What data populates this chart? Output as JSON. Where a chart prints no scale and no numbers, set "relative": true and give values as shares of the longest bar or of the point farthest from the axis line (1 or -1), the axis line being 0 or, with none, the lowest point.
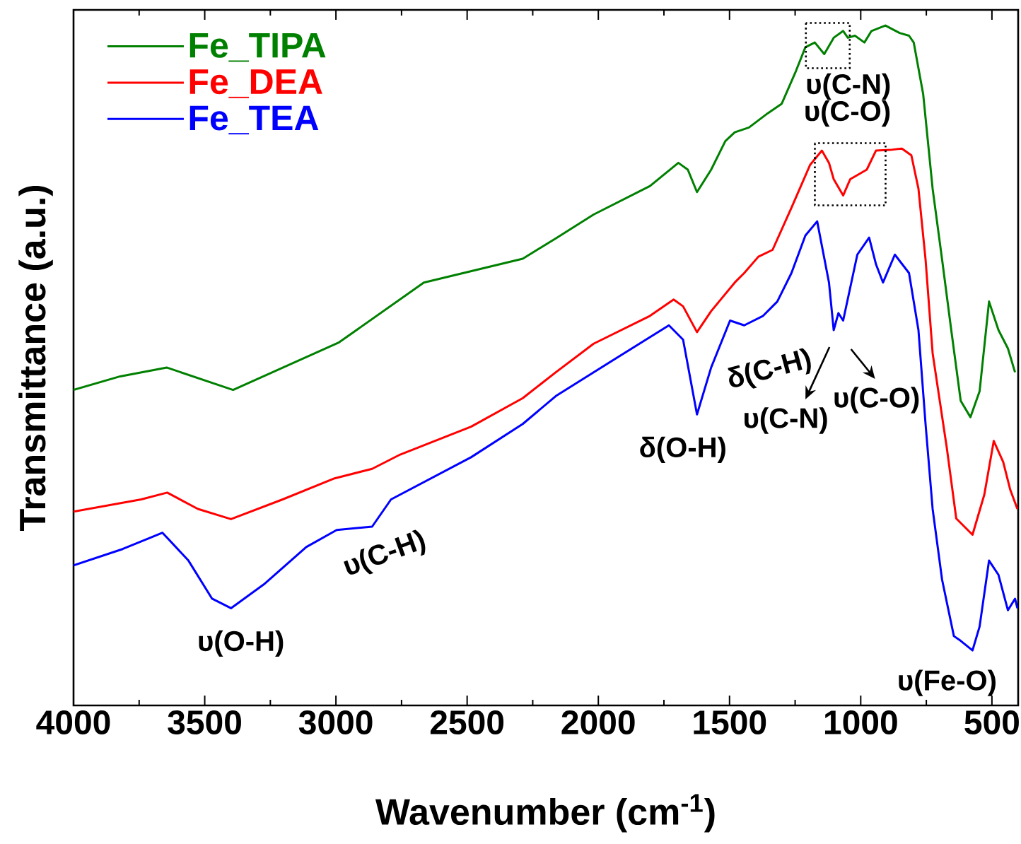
{
  "chart_data": {
    "type": "line",
    "relative": true,
    "xlabel": "Wavenumber (cm$^{-1}$)",
    "ylabel": "Transmittance (a.u.)",
    "xlim": [
      4000,
      400
    ],
    "xticks": [
      4000,
      3500,
      3000,
      2500,
      2000,
      1500,
      1000,
      500
    ],
    "legend": "top left",
    "line_style": "solid",
    "series": [
      {
        "name": "Fe_TIPA",
        "color": "#008000",
        "x": [
          4000,
          3822,
          3645,
          3392,
          2988,
          2665,
          2288,
          2162,
          2018,
          1803,
          1695,
          1659,
          1624,
          1570,
          1516,
          1480,
          1426,
          1354,
          1301,
          1247,
          1211,
          1175,
          1139,
          1103,
          1067,
          1049,
          1022,
          986,
          959,
          906,
          852,
          816,
          798,
          762,
          726,
          690,
          655,
          619,
          582,
          547,
          511,
          475,
          439,
          412
        ],
        "values": [
          0.464,
          0.484,
          0.497,
          0.464,
          0.534,
          0.622,
          0.657,
          0.687,
          0.722,
          0.764,
          0.798,
          0.788,
          0.755,
          0.788,
          0.83,
          0.843,
          0.85,
          0.871,
          0.885,
          0.933,
          0.968,
          0.975,
          0.958,
          0.982,
          0.992,
          0.982,
          0.985,
          0.975,
          0.992,
          1,
          0.989,
          0.985,
          0.975,
          0.899,
          0.76,
          0.656,
          0.552,
          0.448,
          0.424,
          0.462,
          0.594,
          0.552,
          0.525,
          0.49
        ]
      },
      {
        "name": "Fe_DEA",
        "color": "#ff0000",
        "x": [
          4000,
          3742,
          3643,
          3526,
          3400,
          3203,
          3005,
          2862,
          2755,
          2485,
          2288,
          2162,
          2018,
          1803,
          1713,
          1677,
          1624,
          1570,
          1480,
          1444,
          1390,
          1336,
          1264,
          1193,
          1148,
          1121,
          1103,
          1067,
          1040,
          977,
          942,
          888,
          843,
          807,
          780,
          753,
          726,
          672,
          636,
          574,
          529,
          493,
          457,
          430,
          403
        ],
        "values": [
          0.285,
          0.303,
          0.313,
          0.289,
          0.274,
          0.303,
          0.334,
          0.348,
          0.369,
          0.41,
          0.452,
          0.49,
          0.532,
          0.573,
          0.597,
          0.587,
          0.549,
          0.58,
          0.622,
          0.636,
          0.66,
          0.67,
          0.732,
          0.795,
          0.816,
          0.798,
          0.774,
          0.75,
          0.774,
          0.788,
          0.816,
          0.817,
          0.819,
          0.809,
          0.76,
          0.656,
          0.518,
          0.379,
          0.275,
          0.251,
          0.31,
          0.389,
          0.358,
          0.317,
          0.289
        ]
      },
      {
        "name": "Fe_TEA",
        "color": "#0000ff",
        "x": [
          4000,
          3813,
          3661,
          3562,
          3472,
          3400,
          3275,
          3113,
          2997,
          2862,
          2790,
          2485,
          2288,
          2162,
          2018,
          1731,
          1677,
          1624,
          1570,
          1498,
          1444,
          1372,
          1318,
          1264,
          1211,
          1166,
          1121,
          1103,
          1085,
          1067,
          1013,
          968,
          942,
          915,
          870,
          816,
          780,
          753,
          726,
          690,
          645,
          619,
          574,
          547,
          511,
          475,
          439,
          412,
          403
        ],
        "values": [
          0.206,
          0.23,
          0.254,
          0.213,
          0.157,
          0.143,
          0.178,
          0.233,
          0.258,
          0.263,
          0.303,
          0.365,
          0.414,
          0.455,
          0.49,
          0.559,
          0.538,
          0.428,
          0.497,
          0.566,
          0.559,
          0.573,
          0.594,
          0.636,
          0.691,
          0.712,
          0.622,
          0.552,
          0.577,
          0.566,
          0.663,
          0.688,
          0.649,
          0.622,
          0.663,
          0.636,
          0.552,
          0.414,
          0.289,
          0.185,
          0.102,
          0.095,
          0.081,
          0.116,
          0.213,
          0.192,
          0.14,
          0.157,
          0.143
        ]
      }
    ],
    "annotations": [
      {
        "text": "υ(O-H)",
        "x": 3400,
        "y": 0.143
      },
      {
        "text": "υ(C-H)",
        "x": 2862,
        "y": 0.263
      },
      {
        "text": "δ(O-H)",
        "x": 1624,
        "y": 0.428
      },
      {
        "text": "δ(C-H)",
        "x": 1444,
        "y": 0.559
      },
      {
        "text": "υ(C-N)",
        "x": 1103,
        "y": 0.552
      },
      "υ(C-O)",
      {
        "text": "υ(C-N)",
        "x": 1139,
        "y": 0.958
      },
      {
        "text": "υ(C-O)",
        "x": 1067,
        "y": 0.75
      },
      {
        "text": "υ(Fe-O)",
        "x": 574,
        "y": 0.081
      }
    ]
  }
}
